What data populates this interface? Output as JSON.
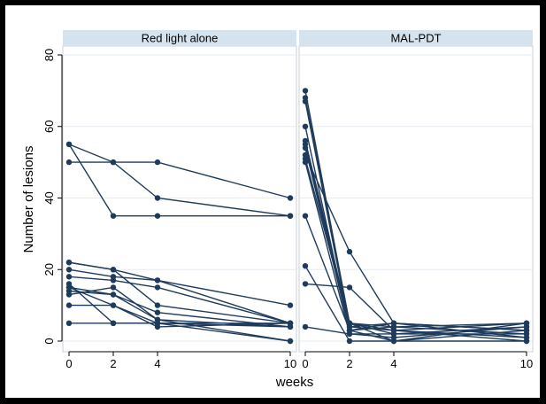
{
  "chart_data": {
    "type": "line",
    "xlabel": "weeks",
    "ylabel": "Number of lesions",
    "xticks": [
      0,
      2,
      4,
      10
    ],
    "yticks": [
      0,
      20,
      40,
      60,
      80
    ],
    "xlim": [
      0,
      10
    ],
    "ylim": [
      0,
      80
    ],
    "grid": true,
    "colors": {
      "series": "#1f3b5c",
      "strip": "#d5e3ee"
    },
    "panels": [
      {
        "title": "Red light alone",
        "series": [
          {
            "x": [
              0,
              2,
              4,
              10
            ],
            "y": [
              55,
              50,
              50,
              40
            ]
          },
          {
            "x": [
              0,
              2,
              4,
              10
            ],
            "y": [
              50,
              50,
              40,
              35
            ]
          },
          {
            "x": [
              0,
              2,
              4,
              10
            ],
            "y": [
              55,
              35,
              35,
              35
            ]
          },
          {
            "x": [
              0,
              2,
              4,
              10
            ],
            "y": [
              22,
              20,
              17,
              10
            ]
          },
          {
            "x": [
              0,
              2,
              4,
              10
            ],
            "y": [
              20,
              18,
              17,
              5
            ]
          },
          {
            "x": [
              0,
              2,
              4,
              10
            ],
            "y": [
              18,
              17,
              15,
              5
            ]
          },
          {
            "x": [
              0,
              2,
              4,
              10
            ],
            "y": [
              22,
              20,
              10,
              5
            ]
          },
          {
            "x": [
              0,
              2,
              4,
              10
            ],
            "y": [
              15,
              13,
              8,
              4
            ]
          },
          {
            "x": [
              0,
              2,
              4,
              10
            ],
            "y": [
              13,
              15,
              6,
              4
            ]
          },
          {
            "x": [
              0,
              2,
              4,
              10
            ],
            "y": [
              15,
              10,
              5,
              0
            ]
          },
          {
            "x": [
              0,
              2,
              4,
              10
            ],
            "y": [
              10,
              10,
              4,
              5
            ]
          },
          {
            "x": [
              0,
              2,
              4,
              10
            ],
            "y": [
              5,
              5,
              5,
              5
            ]
          },
          {
            "x": [
              0,
              2,
              4,
              10
            ],
            "y": [
              16,
              5,
              5,
              4
            ]
          },
          {
            "x": [
              0,
              2,
              4,
              10
            ],
            "y": [
              14,
              13,
              6,
              0
            ]
          }
        ]
      },
      {
        "title": "MAL-PDT",
        "series": [
          {
            "x": [
              0,
              2,
              4,
              10
            ],
            "y": [
              70,
              5,
              0,
              0
            ]
          },
          {
            "x": [
              0,
              2,
              4,
              10
            ],
            "y": [
              68,
              5,
              3,
              5
            ]
          },
          {
            "x": [
              0,
              2,
              4,
              10
            ],
            "y": [
              67,
              4,
              5,
              1
            ]
          },
          {
            "x": [
              0,
              2,
              4,
              10
            ],
            "y": [
              60,
              3,
              5,
              3
            ]
          },
          {
            "x": [
              0,
              2,
              4,
              10
            ],
            "y": [
              56,
              5,
              2,
              4
            ]
          },
          {
            "x": [
              0,
              2,
              4,
              10
            ],
            "y": [
              55,
              4,
              3,
              0
            ]
          },
          {
            "x": [
              0,
              2,
              4,
              10
            ],
            "y": [
              54,
              3,
              0,
              5
            ]
          },
          {
            "x": [
              0,
              2,
              4,
              10
            ],
            "y": [
              52,
              25,
              5,
              3
            ]
          },
          {
            "x": [
              0,
              2,
              4,
              10
            ],
            "y": [
              51,
              5,
              4,
              2
            ]
          },
          {
            "x": [
              0,
              2,
              4,
              10
            ],
            "y": [
              50,
              2,
              1,
              4
            ]
          },
          {
            "x": [
              0,
              2,
              4,
              10
            ],
            "y": [
              35,
              3,
              4,
              5
            ]
          },
          {
            "x": [
              0,
              2,
              4,
              10
            ],
            "y": [
              21,
              0,
              0,
              3
            ]
          },
          {
            "x": [
              0,
              2,
              4,
              10
            ],
            "y": [
              16,
              15,
              3,
              1
            ]
          },
          {
            "x": [
              0,
              2,
              4,
              10
            ],
            "y": [
              4,
              2,
              2,
              2
            ]
          }
        ]
      }
    ]
  }
}
